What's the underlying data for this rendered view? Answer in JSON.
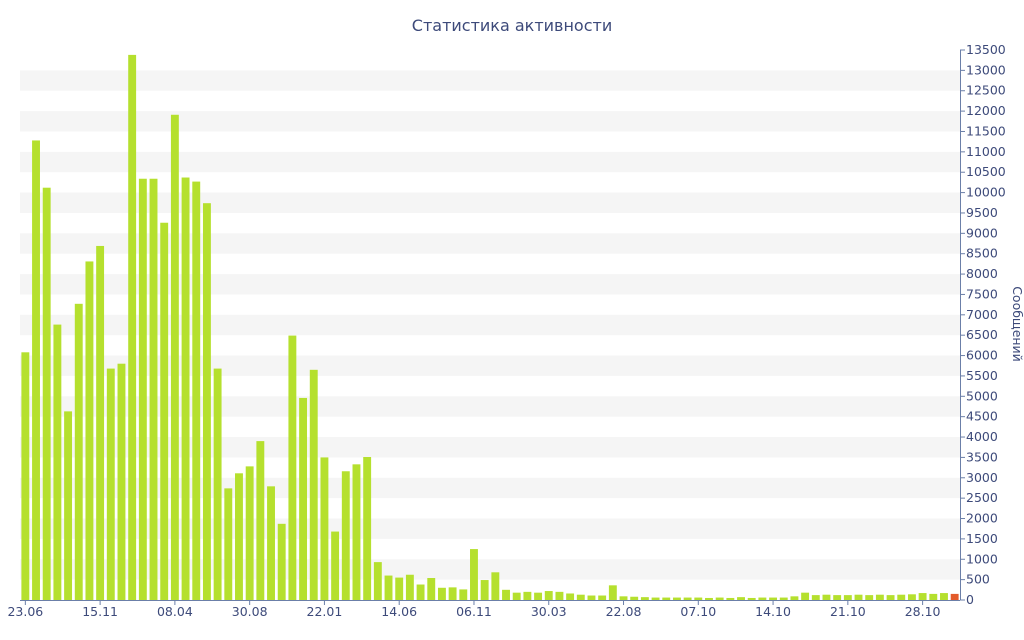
{
  "chart_data": {
    "type": "bar",
    "title": "Статистика активности",
    "ylabel": "Сообщений",
    "xlabel": "",
    "ylim": [
      0,
      13500
    ],
    "y_ticks": [
      0,
      500,
      1000,
      1500,
      2000,
      2500,
      3000,
      3500,
      4000,
      4500,
      5000,
      5500,
      6000,
      6500,
      7000,
      7500,
      8000,
      8500,
      9000,
      9500,
      10000,
      10500,
      11000,
      11500,
      12000,
      12500,
      13000,
      13500
    ],
    "x_ticks": [
      {
        "label": "23.06",
        "index": 0
      },
      {
        "label": "15.11",
        "index": 7
      },
      {
        "label": "08.04",
        "index": 14
      },
      {
        "label": "30.08",
        "index": 21
      },
      {
        "label": "22.01",
        "index": 28
      },
      {
        "label": "14.06",
        "index": 35
      },
      {
        "label": "06.11",
        "index": 42
      },
      {
        "label": "30.03",
        "index": 49
      },
      {
        "label": "22.08",
        "index": 56
      },
      {
        "label": "07.10",
        "index": 63
      },
      {
        "label": "14.10",
        "index": 70
      },
      {
        "label": "21.10",
        "index": 77
      },
      {
        "label": "28.10",
        "index": 84
      }
    ],
    "grid": true,
    "y_axis_position": "right",
    "colors": {
      "bar": "#b5e02e",
      "highlight": "#e35a2a",
      "band": "#f5f5f5",
      "axis": "#6b7fa8",
      "text": "#3d4a7a"
    },
    "values": [
      6080,
      11280,
      10120,
      6760,
      4630,
      7270,
      8310,
      8690,
      5680,
      5800,
      13380,
      10340,
      10340,
      9260,
      11910,
      10370,
      10270,
      9740,
      5680,
      2740,
      3110,
      3280,
      3900,
      2790,
      1870,
      6490,
      4960,
      5650,
      3500,
      1680,
      3160,
      3330,
      3510,
      930,
      600,
      550,
      620,
      380,
      540,
      300,
      310,
      260,
      1250,
      490,
      680,
      250,
      180,
      200,
      180,
      220,
      200,
      160,
      130,
      110,
      110,
      360,
      90,
      80,
      70,
      60,
      60,
      60,
      60,
      60,
      50,
      60,
      50,
      70,
      50,
      60,
      60,
      60,
      90,
      180,
      120,
      130,
      120,
      120,
      130,
      120,
      130,
      120,
      130,
      140,
      170,
      150,
      170,
      150
    ],
    "highlight_last": true
  }
}
